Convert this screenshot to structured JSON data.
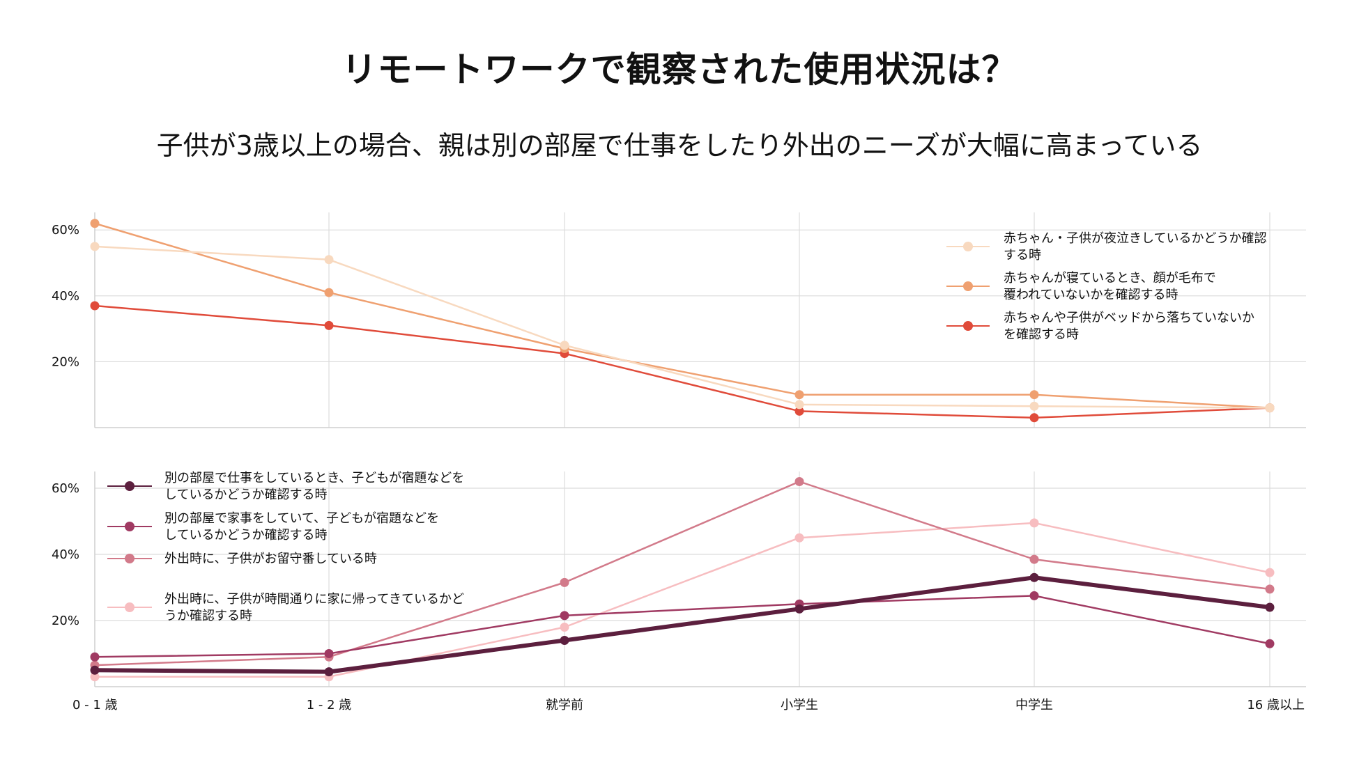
{
  "title": "リモートワークで観察された使用状況は？",
  "subtitle": "子供が3歳以上の場合、親は別の部屋で仕事をしたり外出のニーズが大幅に高まっている",
  "chart_data": [
    {
      "type": "line",
      "categories": [
        "0 - 1 歳",
        "1 - 2 歳",
        "就学前",
        "小学生",
        "中学生",
        "16 歳以上"
      ],
      "ylim": [
        0,
        65
      ],
      "yticks": [
        "20%",
        "40%",
        "60%"
      ],
      "ytick_values": [
        20,
        40,
        60
      ],
      "grid": true,
      "legend_position": "top-right",
      "series": [
        {
          "name": "赤ちゃん・子供が夜泣きしているかどうか確認する時",
          "legend_lines": [
            "赤ちゃん・子供が夜泣きしているかどうか確認",
            "する時"
          ],
          "color": "#F8D9BF",
          "values": [
            55,
            51,
            25,
            7,
            6.5,
            6
          ]
        },
        {
          "name": "赤ちゃんが寝ているとき、顔が毛布で覆われていないかを確認する時",
          "legend_lines": [
            "赤ちゃんが寝ているとき、顔が毛布で",
            "覆われていないかを確認する時"
          ],
          "color": "#EFA070",
          "values": [
            62,
            41,
            24,
            10,
            10,
            6
          ]
        },
        {
          "name": "赤ちゃんや子供がベッドから落ちていないかを確認する時",
          "legend_lines": [
            "赤ちゃんや子供がベッドから落ちていないか",
            "を確認する時"
          ],
          "color": "#E04B3A",
          "values": [
            37,
            31,
            22.5,
            5,
            3,
            6
          ]
        }
      ]
    },
    {
      "type": "line",
      "categories": [
        "0 - 1 歳",
        "1 - 2 歳",
        "就学前",
        "小学生",
        "中学生",
        "16 歳以上"
      ],
      "ylim": [
        0,
        65
      ],
      "yticks": [
        "20%",
        "40%",
        "60%"
      ],
      "ytick_values": [
        20,
        40,
        60
      ],
      "grid": true,
      "legend_position": "top-left",
      "series": [
        {
          "name": "別の部屋で仕事をしているとき、子どもが宿題などをしているかどうか確認する時",
          "legend_lines": [
            "別の部屋で仕事をしているとき、子どもが宿題などを",
            "しているかどうか確認する時"
          ],
          "color": "#5C1F3E",
          "values": [
            5,
            4.5,
            14,
            23.5,
            33,
            24
          ]
        },
        {
          "name": "別の部屋で家事をしていて、子どもが宿題などをしているかどうか確認する時",
          "legend_lines": [
            "別の部屋で家事をしていて、子どもが宿題などを",
            "しているかどうか確認する時"
          ],
          "color": "#A03A62",
          "values": [
            9,
            10,
            21.5,
            25,
            27.5,
            13
          ]
        },
        {
          "name": "外出時に、子供がお留守番している時",
          "legend_lines": [
            "外出時に、子供がお留守番している時"
          ],
          "color": "#D27A8A",
          "values": [
            6.5,
            9,
            31.5,
            62,
            38.5,
            29.5
          ]
        },
        {
          "name": "外出時に、子供が時間通りに家に帰ってきているかどうか確認する時",
          "legend_lines": [
            "外出時に、子供が時間通りに家に帰ってきているかど",
            "うか確認する時"
          ],
          "color": "#F7BDC0",
          "values": [
            3,
            3,
            18,
            45,
            49.5,
            34.5
          ]
        }
      ]
    }
  ]
}
